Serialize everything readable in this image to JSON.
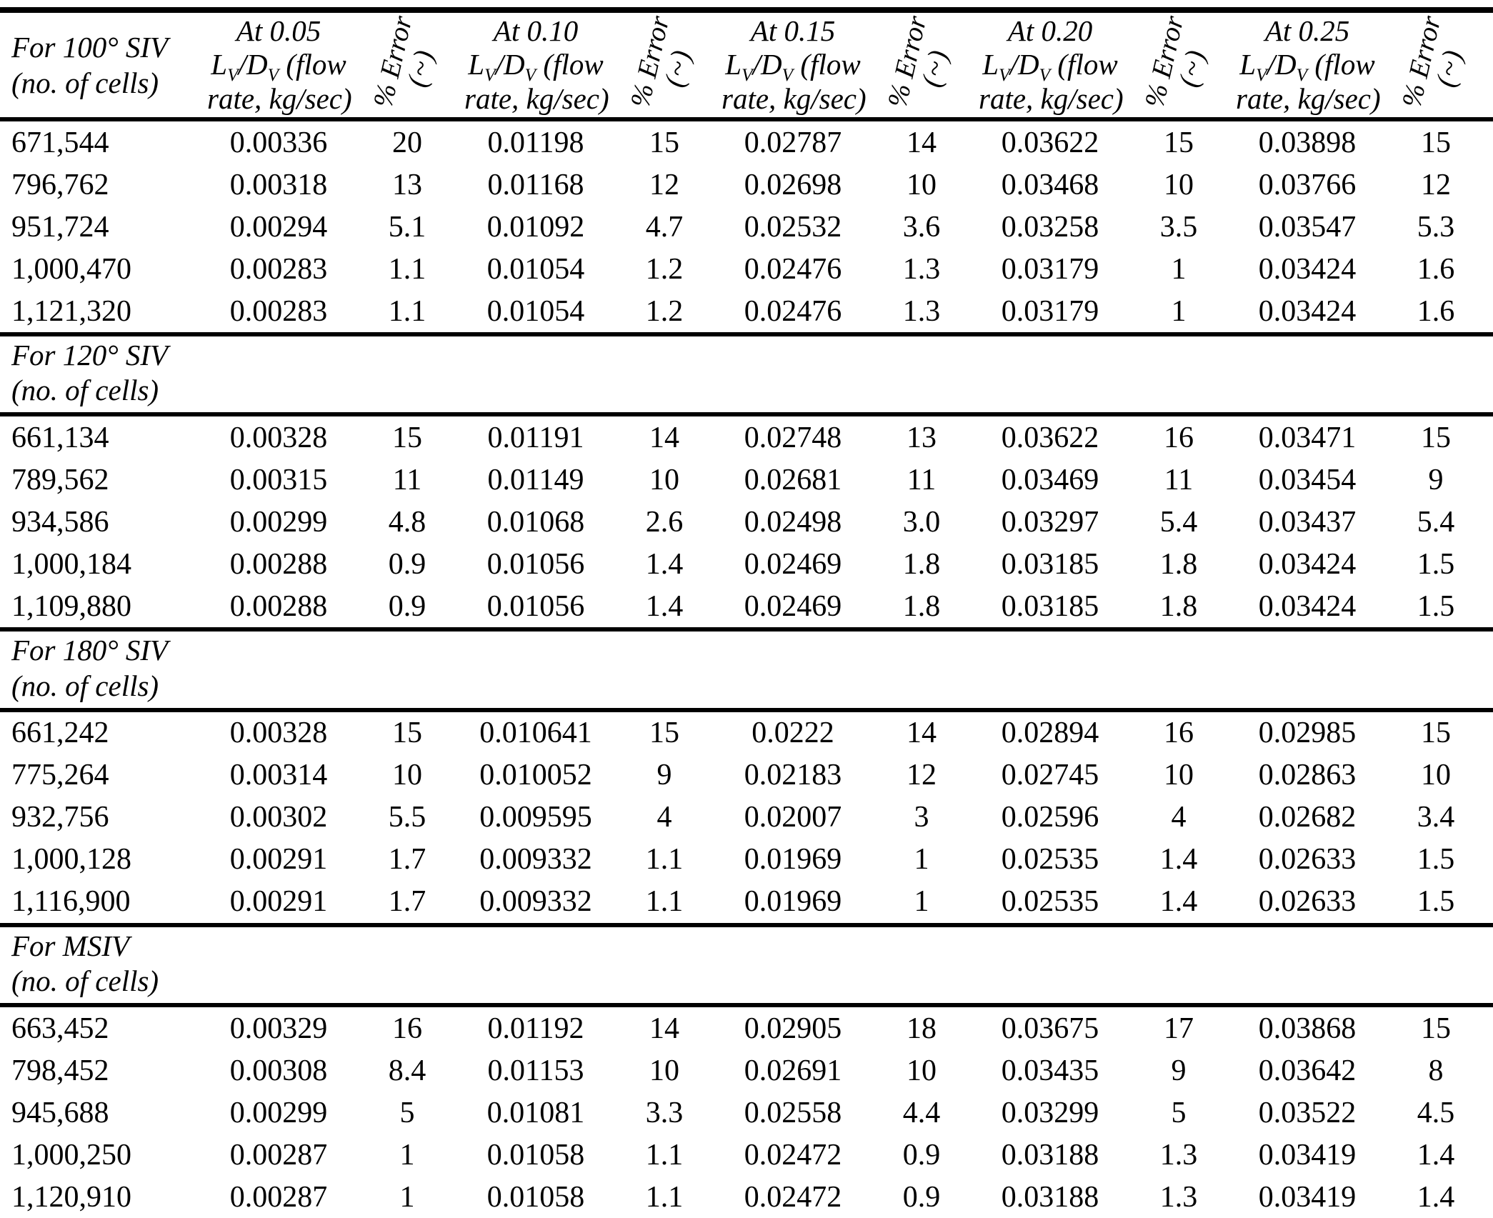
{
  "colors": {
    "text": "#000000",
    "background": "#ffffff",
    "rule": "#000000"
  },
  "header": {
    "first_column": {
      "line1": "For 100° SIV",
      "line2": "(no. of cells)"
    },
    "value_columns": [
      {
        "title": "At 0.05",
        "formula_line": "L_{V}/D_{V} (flow",
        "unit_line": "rate, kg/sec)"
      },
      {
        "title": "At 0.10",
        "formula_line": "L_{V}/D_{V} (flow",
        "unit_line": "rate, kg/sec)"
      },
      {
        "title": "At 0.15",
        "formula_line": "L_{V}/D_{V} (flow",
        "unit_line": "rate, kg/sec)"
      },
      {
        "title": "At 0.20",
        "formula_line": "L_{V}/D_{V} (flow",
        "unit_line": "rate, kg/sec)"
      },
      {
        "title": "At 0.25",
        "formula_line": "L_{V}/D_{V} (flow",
        "unit_line": "rate, kg/sec)"
      }
    ],
    "error_column": {
      "line1": "% Error",
      "line2": "(~)"
    }
  },
  "sections": [
    {
      "rows": [
        [
          "671,544",
          "0.00336",
          "20",
          "0.01198",
          "15",
          "0.02787",
          "14",
          "0.03622",
          "15",
          "0.03898",
          "15"
        ],
        [
          "796,762",
          "0.00318",
          "13",
          "0.01168",
          "12",
          "0.02698",
          "10",
          "0.03468",
          "10",
          "0.03766",
          "12"
        ],
        [
          "951,724",
          "0.00294",
          "5.1",
          "0.01092",
          "4.7",
          "0.02532",
          "3.6",
          "0.03258",
          "3.5",
          "0.03547",
          "5.3"
        ],
        [
          "1,000,470",
          "0.00283",
          "1.1",
          "0.01054",
          "1.2",
          "0.02476",
          "1.3",
          "0.03179",
          "1",
          "0.03424",
          "1.6"
        ],
        [
          "1,121,320",
          "0.00283",
          "1.1",
          "0.01054",
          "1.2",
          "0.02476",
          "1.3",
          "0.03179",
          "1",
          "0.03424",
          "1.6"
        ]
      ]
    },
    {
      "label": "For 120° SIV",
      "sublabel": "(no. of cells)",
      "rows": [
        [
          "661,134",
          "0.00328",
          "15",
          "0.01191",
          "14",
          "0.02748",
          "13",
          "0.03622",
          "16",
          "0.03471",
          "15"
        ],
        [
          "789,562",
          "0.00315",
          "11",
          "0.01149",
          "10",
          "0.02681",
          "11",
          "0.03469",
          "11",
          "0.03454",
          "9"
        ],
        [
          "934,586",
          "0.00299",
          "4.8",
          "0.01068",
          "2.6",
          "0.02498",
          "3.0",
          "0.03297",
          "5.4",
          "0.03437",
          "5.4"
        ],
        [
          "1,000,184",
          "0.00288",
          "0.9",
          "0.01056",
          "1.4",
          "0.02469",
          "1.8",
          "0.03185",
          "1.8",
          "0.03424",
          "1.5"
        ],
        [
          "1,109,880",
          "0.00288",
          "0.9",
          "0.01056",
          "1.4",
          "0.02469",
          "1.8",
          "0.03185",
          "1.8",
          "0.03424",
          "1.5"
        ]
      ]
    },
    {
      "label": "For 180° SIV",
      "sublabel": "(no. of cells)",
      "rows": [
        [
          "661,242",
          "0.00328",
          "15",
          "0.010641",
          "15",
          "0.0222",
          "14",
          "0.02894",
          "16",
          "0.02985",
          "15"
        ],
        [
          "775,264",
          "0.00314",
          "10",
          "0.010052",
          "9",
          "0.02183",
          "12",
          "0.02745",
          "10",
          "0.02863",
          "10"
        ],
        [
          "932,756",
          "0.00302",
          "5.5",
          "0.009595",
          "4",
          "0.02007",
          "3",
          "0.02596",
          "4",
          "0.02682",
          "3.4"
        ],
        [
          "1,000,128",
          "0.00291",
          "1.7",
          "0.009332",
          "1.1",
          "0.01969",
          "1",
          "0.02535",
          "1.4",
          "0.02633",
          "1.5"
        ],
        [
          "1,116,900",
          "0.00291",
          "1.7",
          "0.009332",
          "1.1",
          "0.01969",
          "1",
          "0.02535",
          "1.4",
          "0.02633",
          "1.5"
        ]
      ]
    },
    {
      "label": "For MSIV",
      "sublabel": "(no. of cells)",
      "rows": [
        [
          "663,452",
          "0.00329",
          "16",
          "0.01192",
          "14",
          "0.02905",
          "18",
          "0.03675",
          "17",
          "0.03868",
          "15"
        ],
        [
          "798,452",
          "0.00308",
          "8.4",
          "0.01153",
          "10",
          "0.02691",
          "10",
          "0.03435",
          "9",
          "0.03642",
          "8"
        ],
        [
          "945,688",
          "0.00299",
          "5",
          "0.01081",
          "3.3",
          "0.02558",
          "4.4",
          "0.03299",
          "5",
          "0.03522",
          "4.5"
        ],
        [
          "1,000,250",
          "0.00287",
          "1",
          "0.01058",
          "1.1",
          "0.02472",
          "0.9",
          "0.03188",
          "1.3",
          "0.03419",
          "1.4"
        ],
        [
          "1,120,910",
          "0.00287",
          "1",
          "0.01058",
          "1.1",
          "0.02472",
          "0.9",
          "0.03188",
          "1.3",
          "0.03419",
          "1.4"
        ]
      ]
    }
  ]
}
